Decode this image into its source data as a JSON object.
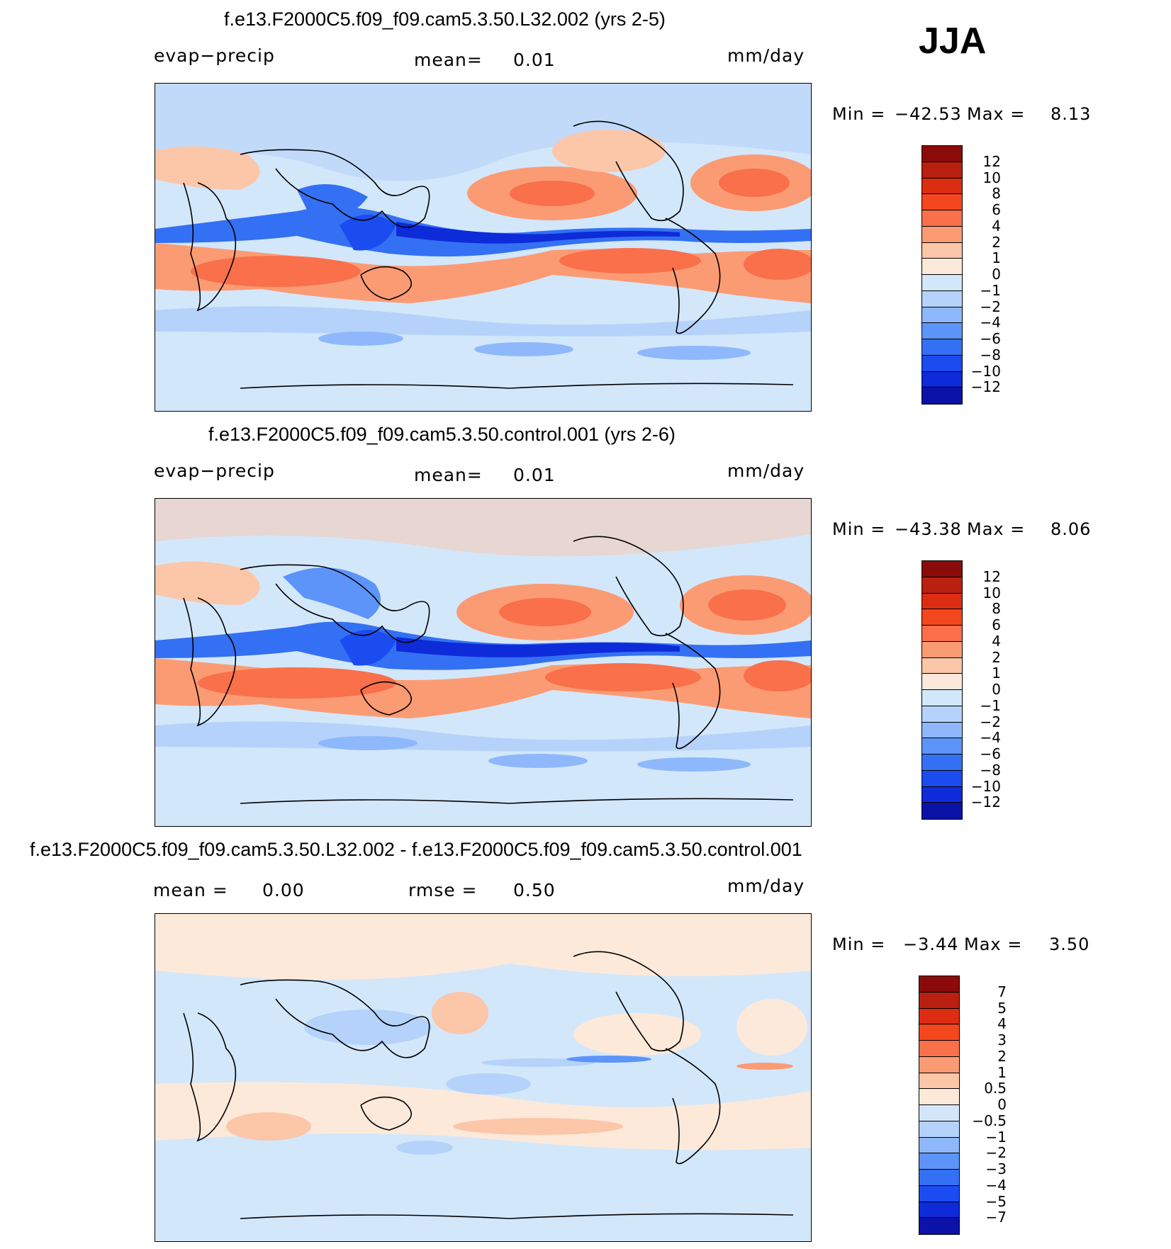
{
  "season": "JJA",
  "colors": {
    "pos_scale": [
      "#fde9da",
      "#fcc6a9",
      "#fb9b74",
      "#f9704a",
      "#f5471d",
      "#dc2d12",
      "#b9200f",
      "#8b0b0b"
    ],
    "neg_scale": [
      "#d3e7fb",
      "#b5d2fa",
      "#8eb8fb",
      "#5d94f9",
      "#3470f3",
      "#1a4cf0",
      "#0d2bd9",
      "#0a12a8",
      "#06067a"
    ],
    "coast": "#000000"
  },
  "panels": [
    {
      "title": "f.e13.F2000C5.f09_f09.cam5.3.50.L32.002 (yrs 2-5)",
      "left_label": "evap−precip",
      "mid_label": "mean=",
      "mid_value": "0.01",
      "units": "mm/day",
      "minmax_min_label": "Min =",
      "minmax_min": "−42.53",
      "minmax_max_label": "Max =",
      "minmax_max": "8.13",
      "colorbar_labels": [
        "12",
        "10",
        "8",
        "6",
        "4",
        "2",
        "1",
        "0",
        "−1",
        "−2",
        "−4",
        "−6",
        "−8",
        "−10",
        "−12"
      ]
    },
    {
      "title": "f.e13.F2000C5.f09_f09.cam5.3.50.control.001 (yrs 2-6)",
      "left_label": "evap−precip",
      "mid_label": "mean=",
      "mid_value": "0.01",
      "units": "mm/day",
      "minmax_min_label": "Min =",
      "minmax_min": "−43.38",
      "minmax_max_label": "Max =",
      "minmax_max": "8.06",
      "colorbar_labels": [
        "12",
        "10",
        "8",
        "6",
        "4",
        "2",
        "1",
        "0",
        "−1",
        "−2",
        "−4",
        "−6",
        "−8",
        "−10",
        "−12"
      ]
    },
    {
      "title": "f.e13.F2000C5.f09_f09.cam5.3.50.L32.002 - f.e13.F2000C5.f09_f09.cam5.3.50.control.001",
      "left_label": "mean =",
      "left_value": "0.00",
      "mid_label": "rmse =",
      "mid_value": "0.50",
      "units": "mm/day",
      "minmax_min_label": "Min =",
      "minmax_min": "−3.44",
      "minmax_max_label": "Max =",
      "minmax_max": "3.50",
      "colorbar_labels": [
        "7",
        "5",
        "4",
        "3",
        "2",
        "1",
        "0.5",
        "0",
        "−0.5",
        "−1",
        "−2",
        "−3",
        "−4",
        "−5",
        "−7"
      ]
    }
  ]
}
